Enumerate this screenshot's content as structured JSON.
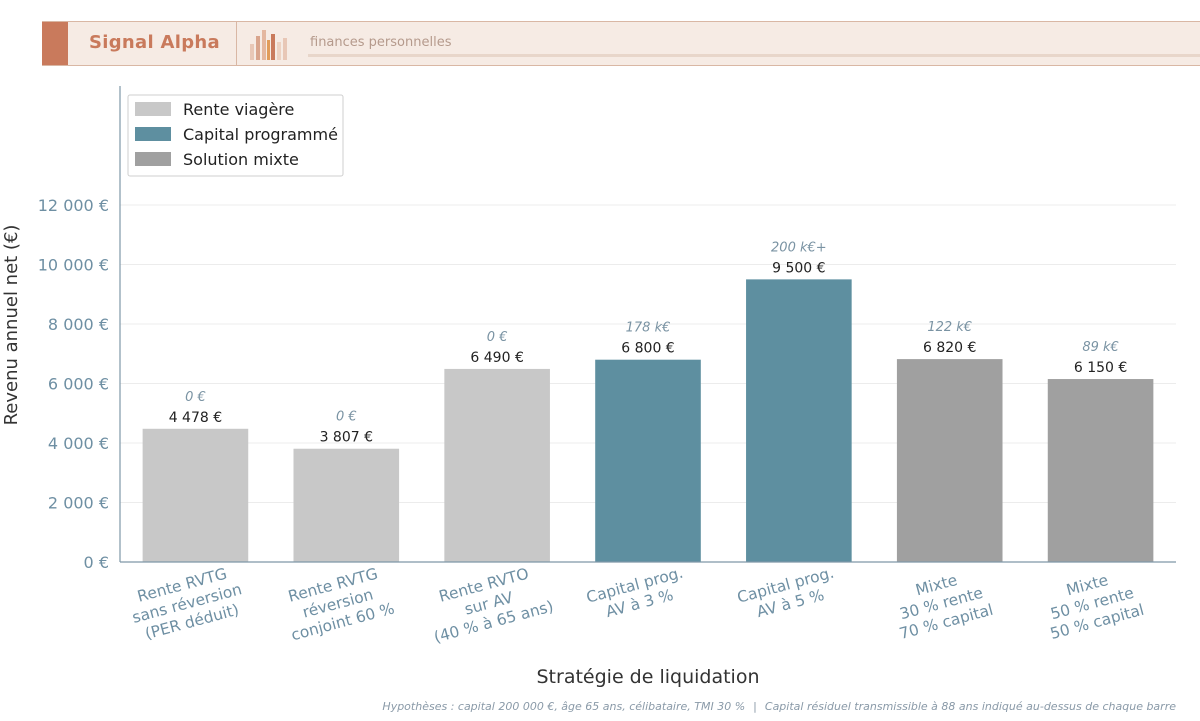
{
  "header": {
    "brand": "Signal Alpha",
    "tagline": "finances personnelles",
    "colors": {
      "accent": "#c97a5c",
      "background": "#f6ebe4"
    }
  },
  "chart_data": {
    "type": "bar",
    "xlabel": "Stratégie de liquidation",
    "ylabel": "Revenu annuel net (€)",
    "ylim": [
      0,
      16000
    ],
    "yticks": [
      0,
      2000,
      4000,
      6000,
      8000,
      10000,
      12000
    ],
    "ytick_labels": [
      "0 €",
      "2 000 €",
      "4 000 €",
      "6 000 €",
      "8 000 €",
      "10 000 €",
      "12 000 €"
    ],
    "grid": true,
    "legend_position": "top-left",
    "legend": [
      {
        "label": "Rente viagère",
        "color": "#c8c8c8"
      },
      {
        "label": "Capital programmé",
        "color": "#5e8fa0"
      },
      {
        "label": "Solution mixte",
        "color": "#a0a0a0"
      }
    ],
    "bars": [
      {
        "category": [
          "Rente RVTG",
          "sans réversion",
          "(PER déduit)"
        ],
        "value": 4478,
        "value_label": "4 478 €",
        "annotation": "0 €",
        "group": "Rente viagère"
      },
      {
        "category": [
          "Rente RVTG",
          "réversion",
          "conjoint 60 %"
        ],
        "value": 3807,
        "value_label": "3 807 €",
        "annotation": "0 €",
        "group": "Rente viagère"
      },
      {
        "category": [
          "Rente RVTO",
          "sur AV",
          "(40 % à 65 ans)"
        ],
        "value": 6490,
        "value_label": "6 490 €",
        "annotation": "0 €",
        "group": "Rente viagère"
      },
      {
        "category": [
          "Capital prog.",
          "AV à 3 %"
        ],
        "value": 6800,
        "value_label": "6 800 €",
        "annotation": "178 k€",
        "group": "Capital programmé"
      },
      {
        "category": [
          "Capital prog.",
          "AV à 5 %"
        ],
        "value": 9500,
        "value_label": "9 500 €",
        "annotation": "200 k€+",
        "group": "Capital programmé"
      },
      {
        "category": [
          "Mixte",
          "30 % rente",
          "70 % capital"
        ],
        "value": 6820,
        "value_label": "6 820 €",
        "annotation": "122 k€",
        "group": "Solution mixte"
      },
      {
        "category": [
          "Mixte",
          "50 % rente",
          "50 % capital"
        ],
        "value": 6150,
        "value_label": "6 150 €",
        "annotation": "89 k€",
        "group": "Solution mixte"
      }
    ]
  },
  "footnote": {
    "left": "Hypothèses : capital 200 000 €, âge 65 ans, célibataire, TMI 30 %",
    "separator": "|",
    "right": "Capital résiduel transmissible à 88 ans indiqué au-dessus de chaque barre"
  }
}
